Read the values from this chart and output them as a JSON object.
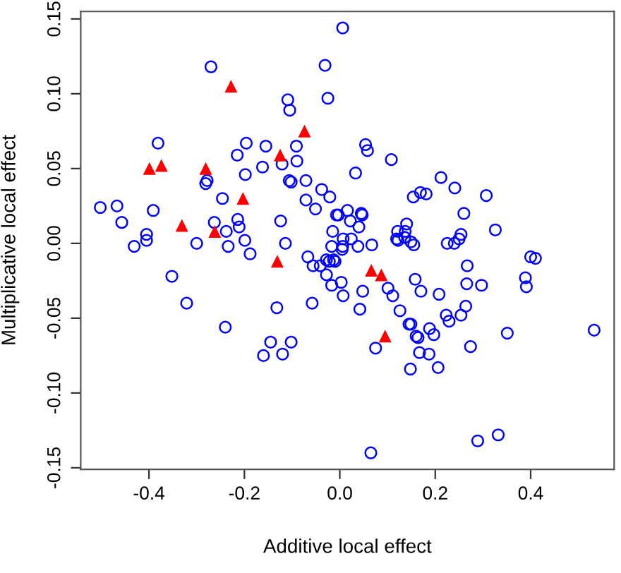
{
  "chart_data": {
    "type": "scatter",
    "xlabel": "Additive local effect",
    "ylabel": "Multiplicative local effect",
    "xlim": [
      -0.543,
      0.575
    ],
    "ylim": [
      -0.151,
      0.155
    ],
    "xticks": [
      {
        "value": -0.4,
        "label": "-0.4"
      },
      {
        "value": -0.2,
        "label": "-0.2"
      },
      {
        "value": 0.0,
        "label": "0.0"
      },
      {
        "value": 0.2,
        "label": "0.2"
      },
      {
        "value": 0.4,
        "label": "0.4"
      }
    ],
    "yticks": [
      {
        "value": -0.15,
        "label": "-0.15"
      },
      {
        "value": -0.1,
        "label": "-0.10"
      },
      {
        "value": -0.05,
        "label": "-0.05"
      },
      {
        "value": 0.0,
        "label": "0.00"
      },
      {
        "value": 0.05,
        "label": "0.05"
      },
      {
        "value": 0.1,
        "label": "0.10"
      },
      {
        "value": 0.15,
        "label": "0.15"
      }
    ],
    "grid": false,
    "series": [
      {
        "color": "#0000ff",
        "marker": "circle",
        "x": [
          -0.502,
          -0.467,
          -0.457,
          -0.391,
          -0.405,
          -0.405,
          -0.431,
          -0.381,
          -0.27,
          -0.3,
          -0.281,
          -0.278,
          -0.263,
          -0.246,
          -0.238,
          -0.234,
          -0.214,
          -0.211,
          -0.199,
          -0.188,
          -0.198,
          -0.215,
          -0.196,
          -0.162,
          -0.155,
          -0.124,
          -0.114,
          -0.121,
          -0.109,
          -0.105,
          -0.106,
          -0.102,
          -0.091,
          -0.09,
          -0.071,
          -0.071,
          -0.051,
          -0.038,
          -0.031,
          -0.025,
          -0.021,
          -0.067,
          -0.056,
          -0.041,
          -0.028,
          -0.015,
          -0.017,
          -0.013,
          -0.028,
          -0.007,
          -0.352,
          -0.321,
          -0.24,
          -0.132,
          -0.145,
          -0.16,
          -0.12,
          -0.102,
          -0.058,
          -0.017,
          0.006,
          0.054,
          0.058,
          0.108,
          0.033,
          -0.003,
          0.016,
          0.045,
          0.047,
          0.022,
          0.04,
          0.007,
          0.024,
          0.006,
          0.038,
          0.067,
          0.005,
          -0.01,
          -0.022,
          0.003,
          0.212,
          0.241,
          0.169,
          0.181,
          0.154,
          0.307,
          0.26,
          0.326,
          0.14,
          0.121,
          0.137,
          0.119,
          0.122,
          0.136,
          0.149,
          0.155,
          0.254,
          0.25,
          0.24,
          0.225,
          0.4,
          0.41,
          0.267,
          0.158,
          0.389,
          0.007,
          0.048,
          0.042,
          0.101,
          0.111,
          0.126,
          0.17,
          0.208,
          0.145,
          0.149,
          0.16,
          0.164,
          0.188,
          0.197,
          0.167,
          0.187,
          0.148,
          0.206,
          0.075,
          0.223,
          0.229,
          0.254,
          0.264,
          0.266,
          0.297,
          0.274,
          0.351,
          0.391,
          0.533,
          0.289,
          0.332,
          0.065
        ],
        "values": [
          0.024,
          0.025,
          0.014,
          0.022,
          0.006,
          0.002,
          -0.002,
          0.067,
          0.118,
          0.0,
          0.04,
          0.042,
          0.014,
          0.03,
          0.008,
          -0.002,
          0.016,
          0.011,
          0.002,
          -0.007,
          0.046,
          0.059,
          0.067,
          0.051,
          0.065,
          0.015,
          0.0,
          0.053,
          0.096,
          0.089,
          0.042,
          0.041,
          0.065,
          0.055,
          0.042,
          0.029,
          0.023,
          0.036,
          0.119,
          0.097,
          0.031,
          -0.009,
          -0.015,
          -0.015,
          -0.011,
          0.008,
          -0.002,
          -0.011,
          -0.021,
          0.019,
          -0.022,
          -0.04,
          -0.056,
          -0.043,
          -0.066,
          -0.075,
          -0.074,
          -0.066,
          -0.04,
          -0.028,
          0.144,
          0.066,
          0.062,
          0.056,
          0.047,
          0.019,
          0.022,
          0.02,
          0.019,
          0.015,
          0.011,
          0.003,
          0.003,
          -0.002,
          -0.002,
          -0.001,
          -0.004,
          -0.012,
          -0.012,
          -0.026,
          0.044,
          0.037,
          0.034,
          0.033,
          0.031,
          0.032,
          0.02,
          0.009,
          0.013,
          0.008,
          0.008,
          0.003,
          0.002,
          0.004,
          0.001,
          -0.001,
          0.006,
          0.003,
          0.0,
          0.0,
          -0.009,
          -0.01,
          -0.015,
          -0.024,
          -0.023,
          -0.035,
          -0.032,
          -0.044,
          -0.03,
          -0.035,
          -0.045,
          -0.032,
          -0.034,
          -0.054,
          -0.054,
          -0.062,
          -0.063,
          -0.057,
          -0.061,
          -0.073,
          -0.074,
          -0.084,
          -0.083,
          -0.07,
          -0.048,
          -0.052,
          -0.048,
          -0.042,
          -0.027,
          -0.028,
          -0.069,
          -0.06,
          -0.029,
          -0.058,
          -0.132,
          -0.128,
          -0.14
        ]
      },
      {
        "color": "#ff0000",
        "marker": "triangle",
        "x": [
          -0.399,
          -0.374,
          -0.281,
          -0.228,
          -0.331,
          -0.262,
          -0.203,
          -0.125,
          -0.074,
          -0.131,
          0.066,
          0.087,
          0.095
        ],
        "values": [
          0.05,
          0.052,
          0.05,
          0.105,
          0.012,
          0.008,
          0.03,
          0.059,
          0.075,
          -0.012,
          -0.018,
          -0.021,
          -0.062
        ]
      }
    ]
  }
}
